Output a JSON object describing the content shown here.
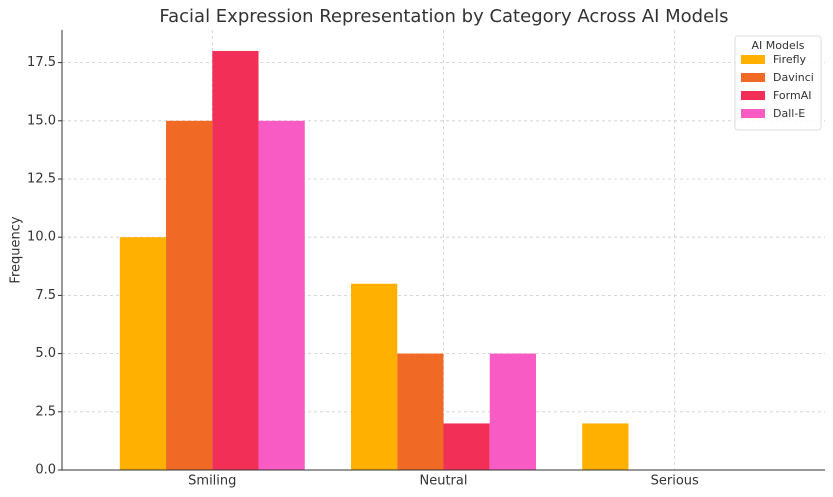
{
  "chart_data": {
    "type": "bar",
    "title": "Facial Expression Representation by Category Across AI Models",
    "y_label": "Frequency",
    "categories": [
      "Smiling",
      "Neutral",
      "Serious"
    ],
    "series": [
      {
        "name": "Firefly",
        "color": "#ffb000",
        "values": [
          10,
          8,
          2
        ]
      },
      {
        "name": "Davinci",
        "color": "#f06a25",
        "values": [
          15,
          5,
          0
        ]
      },
      {
        "name": "FormAI",
        "color": "#f23057",
        "values": [
          18,
          2,
          0
        ]
      },
      {
        "name": "Dall-E",
        "color": "#f95bc4",
        "values": [
          15,
          5,
          0
        ]
      }
    ],
    "legend_title": "AI Models",
    "legend_position": "upper right",
    "ylim": [
      0,
      18.9
    ],
    "yticks": [
      {
        "value": 0,
        "label": "0.0"
      },
      {
        "value": 2.5,
        "label": "2.5"
      },
      {
        "value": 5,
        "label": "5.0"
      },
      {
        "value": 7.5,
        "label": "7.5"
      },
      {
        "value": 10,
        "label": "10.0"
      },
      {
        "value": 12.5,
        "label": "12.5"
      },
      {
        "value": 15,
        "label": "15.0"
      },
      {
        "value": 17.5,
        "label": "17.5"
      }
    ],
    "grid": true
  }
}
